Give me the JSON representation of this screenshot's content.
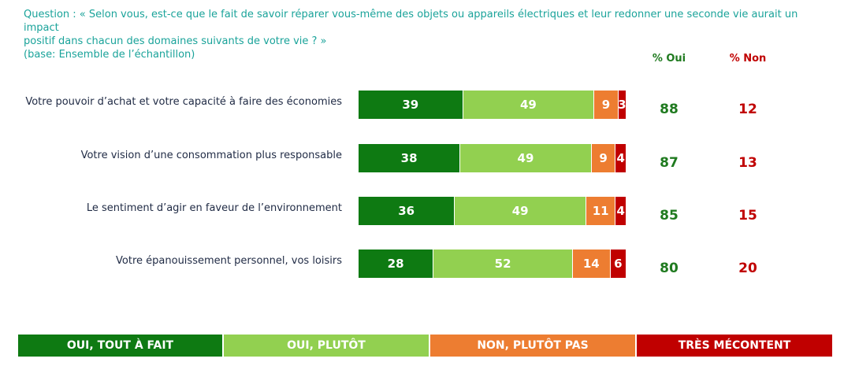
{
  "question": {
    "line1": "Question : « Selon vous, est-ce que le fait de savoir réparer vous-même des objets ou appareils électriques et leur redonner une seconde vie aurait un impact",
    "line2": "positif dans chacun des domaines suivants de votre vie ? »",
    "base": "(base: Ensemble de l’échantillon)"
  },
  "columns": {
    "oui": "% Oui",
    "non": "% Non"
  },
  "colors": {
    "tout_a_fait": "#0e7a12",
    "plutot": "#92d050",
    "plutot_pas": "#ed7d31",
    "tres": "#c00000",
    "oui_total": "#1f7a1f",
    "non_total": "#c00000"
  },
  "chart_data": {
    "type": "bar",
    "orientation": "horizontal",
    "stacked": true,
    "categories": [
      "Votre pouvoir d’achat et votre capacité à faire des économies",
      "Votre vision d’une consommation plus responsable",
      "Le sentiment d’agir en faveur de l’environnement",
      "Votre épanouissement personnel, vos loisirs"
    ],
    "series": [
      {
        "name": "OUI, TOUT À FAIT",
        "values": [
          39,
          38,
          36,
          28
        ]
      },
      {
        "name": "OUI, PLUTÔT",
        "values": [
          49,
          49,
          49,
          52
        ]
      },
      {
        "name": "NON, PLUTÔT PAS",
        "values": [
          9,
          9,
          11,
          14
        ]
      },
      {
        "name": "TRÈS MÉCONTENT",
        "values": [
          3,
          4,
          4,
          6
        ]
      }
    ],
    "totals_oui": [
      88,
      87,
      85,
      80
    ],
    "totals_non": [
      12,
      13,
      15,
      20
    ],
    "legend_position": "bottom"
  }
}
